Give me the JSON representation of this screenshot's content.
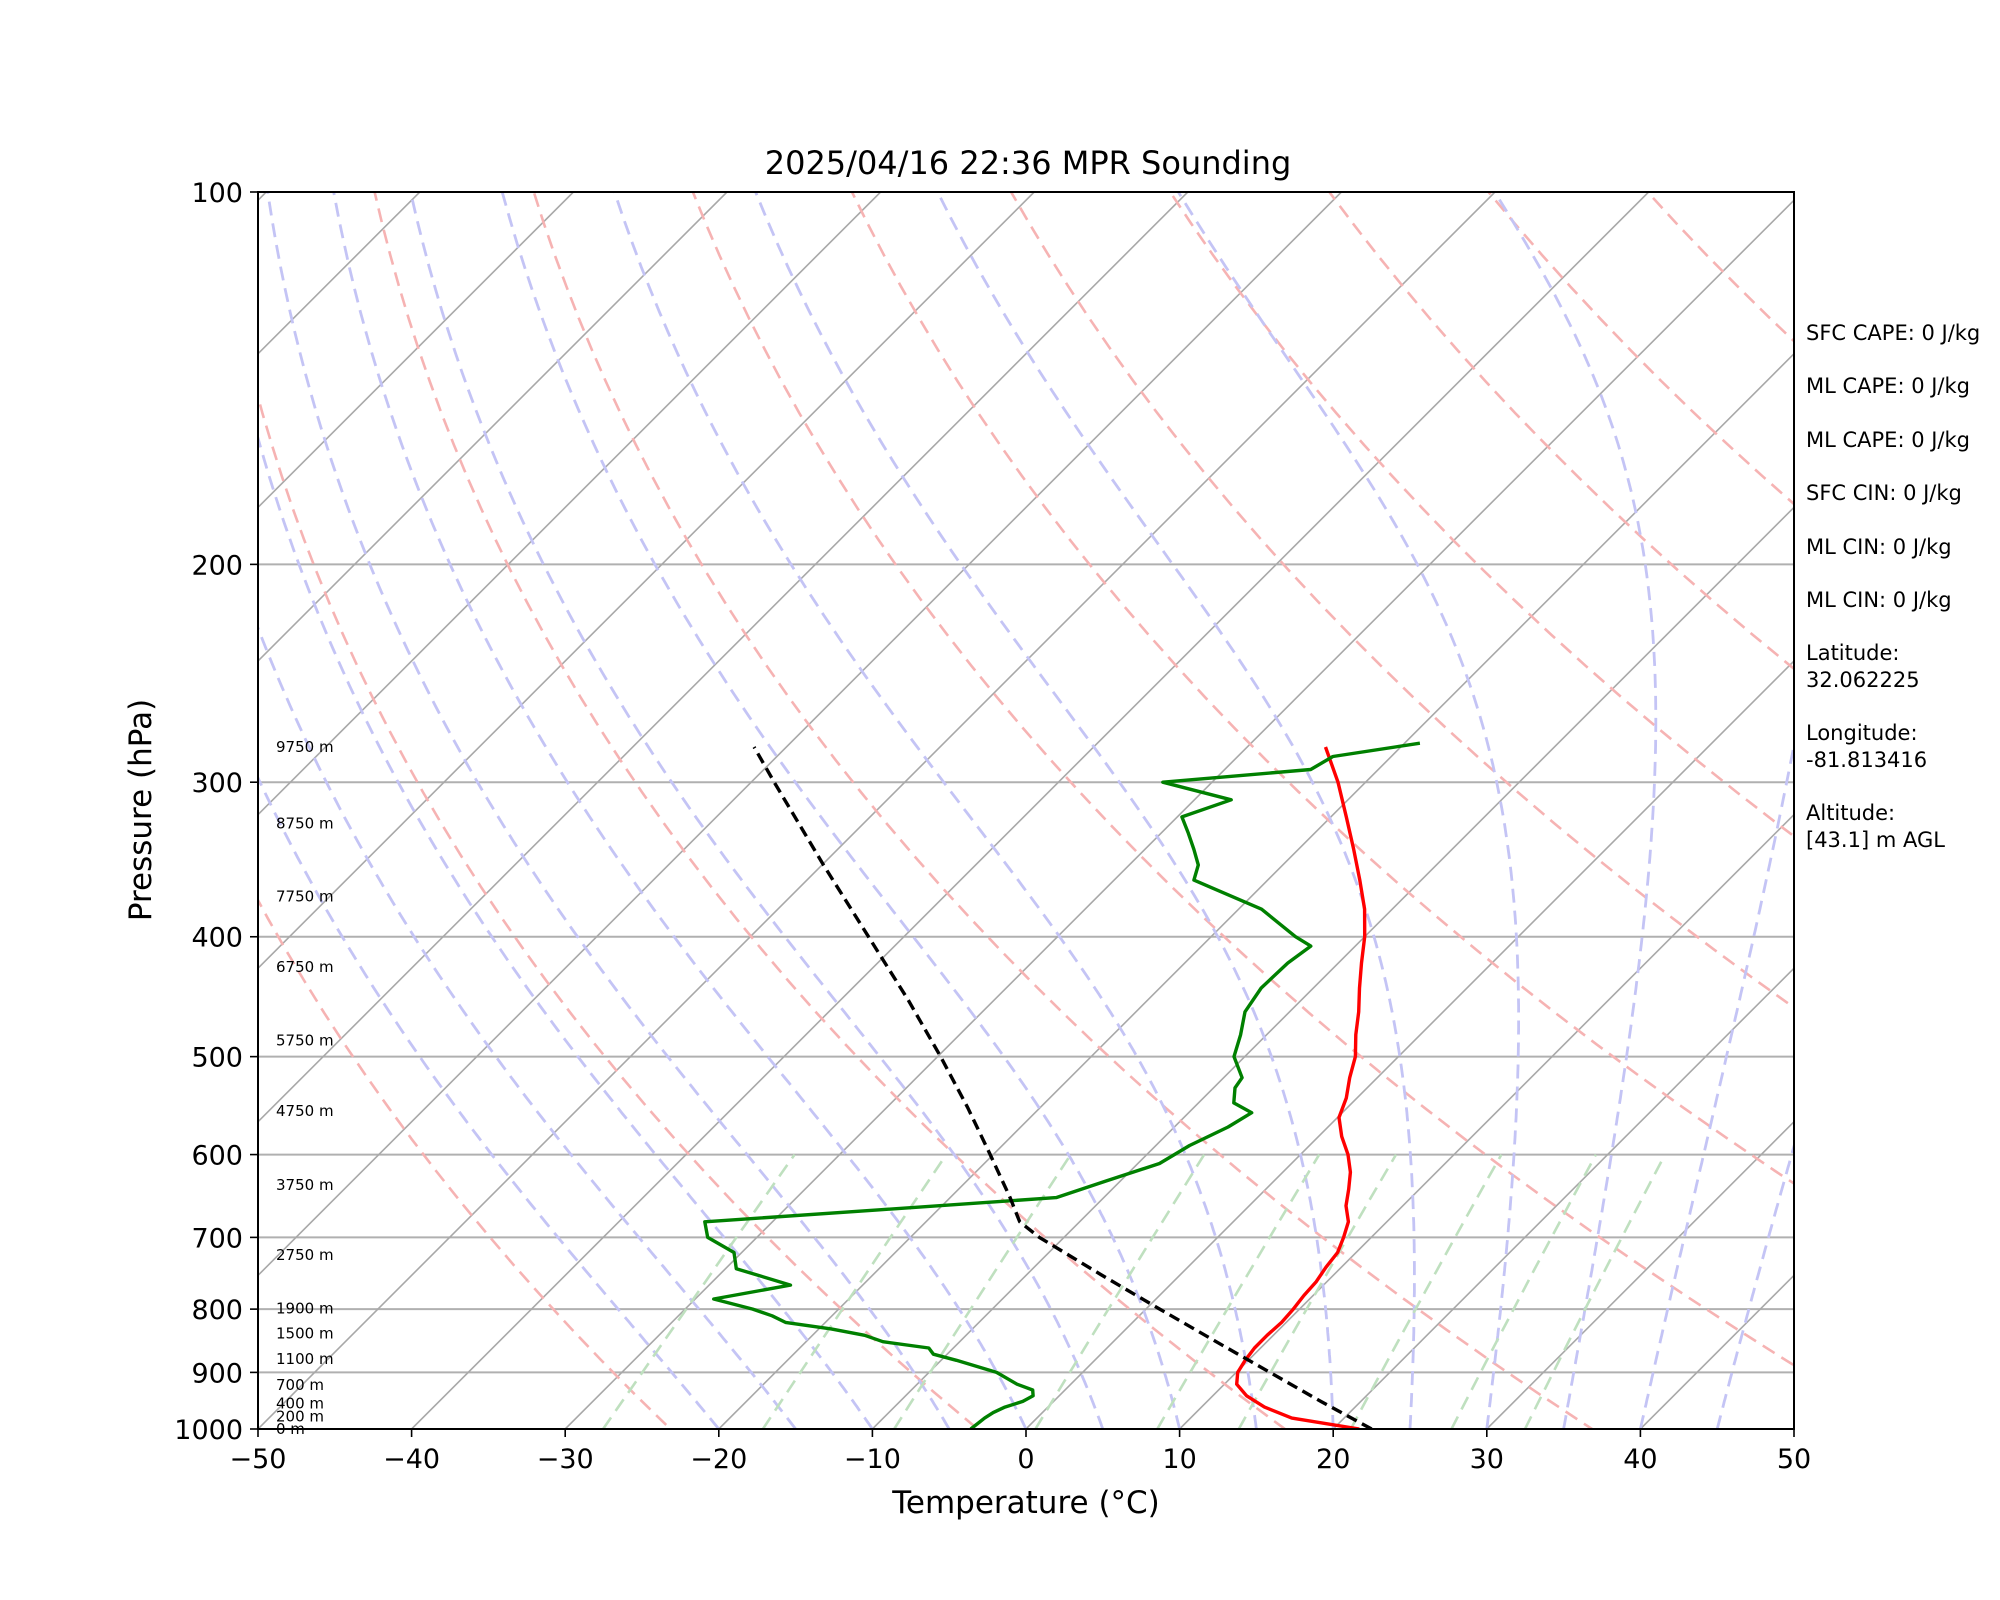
{
  "chart_data": {
    "type": "line",
    "title": "2025/04/16 22:36 MPR Sounding",
    "xlabel": "Temperature (°C)",
    "ylabel": "Pressure (hPa)",
    "xlim": [
      -50,
      50
    ],
    "ylim": [
      1000,
      100
    ],
    "yscale": "log",
    "grid": true,
    "x_ticks": [
      -50,
      -40,
      -30,
      -20,
      -10,
      0,
      10,
      20,
      30,
      40,
      50
    ],
    "x_tick_labels": [
      "−50",
      "−40",
      "−30",
      "−20",
      "−10",
      "0",
      "10",
      "20",
      "30",
      "40",
      "50"
    ],
    "y_ticks": [
      1000,
      900,
      800,
      700,
      600,
      500,
      400,
      300,
      200,
      100
    ],
    "y_tick_labels": [
      "1000",
      "900",
      "800",
      "700",
      "600",
      "500",
      "400",
      "300",
      "200",
      "100"
    ],
    "series": [
      {
        "kind": "temperature",
        "color": "#ff0000",
        "points": [
          [
            1000,
            21.7
          ],
          [
            980,
            16.6
          ],
          [
            960,
            14.1
          ],
          [
            940,
            12.2
          ],
          [
            920,
            10.8
          ],
          [
            900,
            10.1
          ],
          [
            880,
            9.8
          ],
          [
            860,
            9.6
          ],
          [
            840,
            9.6
          ],
          [
            820,
            9.7
          ],
          [
            800,
            9.6
          ],
          [
            780,
            9.4
          ],
          [
            760,
            9.3
          ],
          [
            740,
            9.0
          ],
          [
            720,
            8.8
          ],
          [
            700,
            8.2
          ],
          [
            680,
            7.5
          ],
          [
            660,
            6.3
          ],
          [
            640,
            5.4
          ],
          [
            620,
            4.4
          ],
          [
            600,
            3.1
          ],
          [
            580,
            1.5
          ],
          [
            560,
            0.1
          ],
          [
            540,
            -0.7
          ],
          [
            520,
            -1.8
          ],
          [
            500,
            -2.8
          ],
          [
            480,
            -4.2
          ],
          [
            460,
            -5.5
          ],
          [
            440,
            -7.0
          ],
          [
            420,
            -8.5
          ],
          [
            400,
            -10.0
          ],
          [
            380,
            -11.8
          ],
          [
            360,
            -14.0
          ],
          [
            340,
            -16.4
          ],
          [
            320,
            -19.0
          ],
          [
            300,
            -21.8
          ],
          [
            281,
            -24.9
          ]
        ]
      },
      {
        "kind": "dewpoint",
        "color": "#008000",
        "points": [
          [
            1000,
            -3.6
          ],
          [
            990,
            -3.5
          ],
          [
            980,
            -3.4
          ],
          [
            970,
            -3.2
          ],
          [
            960,
            -2.8
          ],
          [
            950,
            -2.0
          ],
          [
            940,
            -1.7
          ],
          [
            930,
            -2.1
          ],
          [
            920,
            -3.5
          ],
          [
            900,
            -5.6
          ],
          [
            880,
            -9.0
          ],
          [
            870,
            -10.9
          ],
          [
            860,
            -11.6
          ],
          [
            850,
            -15.0
          ],
          [
            840,
            -16.6
          ],
          [
            830,
            -19.2
          ],
          [
            820,
            -22.6
          ],
          [
            810,
            -23.9
          ],
          [
            800,
            -25.6
          ],
          [
            785,
            -28.8
          ],
          [
            765,
            -24.7
          ],
          [
            742,
            -29.3
          ],
          [
            720,
            -30.5
          ],
          [
            700,
            -33.2
          ],
          [
            680,
            -34.4
          ],
          [
            665,
            -23.8
          ],
          [
            650,
            -13.1
          ],
          [
            630,
            -10.9
          ],
          [
            610,
            -8.6
          ],
          [
            590,
            -7.8
          ],
          [
            570,
            -6.5
          ],
          [
            555,
            -5.9
          ],
          [
            545,
            -7.7
          ],
          [
            530,
            -8.6
          ],
          [
            520,
            -8.8
          ],
          [
            500,
            -10.7
          ],
          [
            480,
            -11.7
          ],
          [
            460,
            -12.9
          ],
          [
            440,
            -13.4
          ],
          [
            420,
            -13.3
          ],
          [
            407,
            -12.9
          ],
          [
            400,
            -14.5
          ],
          [
            380,
            -18.5
          ],
          [
            360,
            -24.8
          ],
          [
            350,
            -25.5
          ],
          [
            340,
            -26.8
          ],
          [
            330,
            -28.2
          ],
          [
            320,
            -29.7
          ],
          [
            310,
            -27.6
          ],
          [
            300,
            -33.2
          ],
          [
            293,
            -24.4
          ],
          [
            286,
            -23.8
          ],
          [
            279,
            -19.0
          ]
        ]
      },
      {
        "kind": "parcel",
        "color": "#000000",
        "dashed": true,
        "points": [
          [
            1000,
            22.5
          ],
          [
            950,
            17.4
          ],
          [
            900,
            12.2
          ],
          [
            850,
            6.7
          ],
          [
            800,
            0.9
          ],
          [
            750,
            -5.2
          ],
          [
            700,
            -11.6
          ],
          [
            680,
            -13.9
          ],
          [
            650,
            -16.1
          ],
          [
            600,
            -20.2
          ],
          [
            550,
            -24.7
          ],
          [
            500,
            -29.8
          ],
          [
            450,
            -35.6
          ],
          [
            400,
            -42.3
          ],
          [
            350,
            -49.9
          ],
          [
            300,
            -58.5
          ],
          [
            281,
            -62.1
          ]
        ]
      }
    ],
    "dry_adiabats_K": [
      250,
      270,
      290,
      310,
      330,
      350,
      370,
      390,
      410,
      430,
      450,
      470,
      490,
      510
    ],
    "moist_adiabats_surface_C": [
      -20,
      -15,
      -10,
      -5,
      0,
      5,
      10,
      15,
      20,
      25,
      30,
      35,
      40,
      45
    ],
    "mixing_ratio_lines_gkg": [
      0.4,
      1,
      2,
      4,
      7,
      10,
      16,
      24,
      32
    ],
    "height_labels": [
      {
        "pressure": 1000,
        "label": "0 m"
      },
      {
        "pressure": 977,
        "label": "200 m"
      },
      {
        "pressure": 954,
        "label": "400 m"
      },
      {
        "pressure": 921,
        "label": "700 m"
      },
      {
        "pressure": 878,
        "label": "1100 m"
      },
      {
        "pressure": 837,
        "label": "1500 m"
      },
      {
        "pressure": 799,
        "label": "1900 m"
      },
      {
        "pressure": 723,
        "label": "2750 m"
      },
      {
        "pressure": 635,
        "label": "3750 m"
      },
      {
        "pressure": 553,
        "label": "4750 m"
      },
      {
        "pressure": 485,
        "label": "5750 m"
      },
      {
        "pressure": 423,
        "label": "6750 m"
      },
      {
        "pressure": 371,
        "label": "7750 m"
      },
      {
        "pressure": 324,
        "label": "8750 m"
      },
      {
        "pressure": 281,
        "label": "9750 m"
      }
    ]
  },
  "info": {
    "sfc_cape": "SFC CAPE: 0 J/kg",
    "ml_cape_1": "ML CAPE: 0 J/kg",
    "ml_cape_2": "ML CAPE: 0 J/kg",
    "sfc_cin": "SFC CIN: 0 J/kg",
    "ml_cin_1": "ML CIN: 0 J/kg",
    "ml_cin_2": "ML CIN: 0 J/kg",
    "latitude_label": "Latitude:",
    "latitude_value": "32.062225",
    "longitude_label": "Longitude:",
    "longitude_value": "-81.813416",
    "altitude_label": "Altitude:",
    "altitude_value": "[43.1] m AGL"
  }
}
